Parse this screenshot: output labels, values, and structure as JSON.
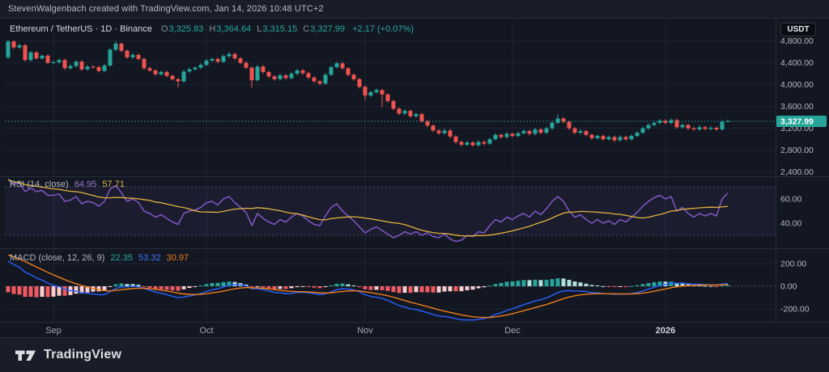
{
  "header": {
    "attribution": "StevenWalgenbach created with TradingView.com, Jan 14, 2026 10:48 UTC+2"
  },
  "toolbar": {
    "currency_button": "USDT"
  },
  "legend": {
    "symbol": "Ethereum / TetherUS · 1D · Binance",
    "ohlc": {
      "o_label": "O",
      "o": "3,325.83",
      "h_label": "H",
      "h": "3,364.64",
      "l_label": "L",
      "l": "3,315.15",
      "c_label": "C",
      "c": "3,327.99",
      "change": "+2.17 (+0.07%)"
    }
  },
  "rsi_legend": {
    "title": "RSI (14, close)",
    "value": "64.95",
    "ma_value": "57.71"
  },
  "macd_legend": {
    "title": "MACD (close, 12, 26, 9)",
    "hist": "22.35",
    "macd": "53.32",
    "signal": "30.97"
  },
  "footer": {
    "brand": "TradingView"
  },
  "colors": {
    "up": "#26a69a",
    "down": "#ef5350",
    "rsi_line": "#7e57c2",
    "rsi_ma": "#dfb23c",
    "rsi_band_fill": "rgba(126,87,194,0.09)",
    "macd_line": "#2962ff",
    "signal_line": "#f07d1a",
    "hist_up": "#26a69a",
    "hist_up_fade": "#b2dfdb",
    "hist_down": "#f25a60",
    "hist_down_fade": "#fbccd0",
    "grid": "#1d2333",
    "separator": "#262c3b",
    "axis_text": "#b3b7c0",
    "month_text": "#a2a6b1",
    "price_tag_bg": "#26a69a",
    "price_tag_text": "#ffffff",
    "price_line": "#26a69a"
  },
  "chart_data": {
    "type": "candlestick+indicators",
    "title": "Ethereum / TetherUS · 1D · Binance",
    "last_price": 3327.99,
    "price_tag": "3,327.99",
    "price_axis": {
      "range": [
        2351,
        5120
      ],
      "ticks": [
        {
          "v": 4800,
          "label": "4,800.00"
        },
        {
          "v": 4400,
          "label": "4,400.00"
        },
        {
          "v": 4000,
          "label": "4,000.00"
        },
        {
          "v": 3600,
          "label": "3,600.00"
        },
        {
          "v": 3200,
          "label": "3,200.00"
        },
        {
          "v": 2800,
          "label": "2,800.00"
        },
        {
          "v": 2400,
          "label": "2,400.00"
        }
      ]
    },
    "time_axis": {
      "months": [
        {
          "label": "Sep",
          "i": 8
        },
        {
          "label": "Oct",
          "i": 35
        },
        {
          "label": "Nov",
          "i": 63
        },
        {
          "label": "Dec",
          "i": 89
        },
        {
          "label": "2026",
          "i": 116,
          "year": true
        }
      ]
    },
    "candles": [
      [
        4500,
        4820,
        4470,
        4790
      ],
      [
        4790,
        4815,
        4650,
        4680
      ],
      [
        4680,
        4750,
        4655,
        4720
      ],
      [
        4720,
        4745,
        4420,
        4450
      ],
      [
        4450,
        4615,
        4425,
        4590
      ],
      [
        4590,
        4615,
        4455,
        4480
      ],
      [
        4480,
        4555,
        4455,
        4530
      ],
      [
        4530,
        4555,
        4375,
        4400
      ],
      [
        4400,
        4445,
        4370,
        4410
      ],
      [
        4410,
        4480,
        4385,
        4450
      ],
      [
        4450,
        4475,
        4270,
        4300
      ],
      [
        4300,
        4370,
        4275,
        4340
      ],
      [
        4340,
        4450,
        4315,
        4420
      ],
      [
        4420,
        4445,
        4250,
        4280
      ],
      [
        4280,
        4360,
        4255,
        4330
      ],
      [
        4330,
        4355,
        4290,
        4320
      ],
      [
        4320,
        4345,
        4220,
        4250
      ],
      [
        4250,
        4380,
        4225,
        4350
      ],
      [
        4350,
        4670,
        4330,
        4640
      ],
      [
        4640,
        4790,
        4615,
        4750
      ],
      [
        4750,
        4775,
        4590,
        4620
      ],
      [
        4620,
        4645,
        4470,
        4500
      ],
      [
        4500,
        4575,
        4475,
        4545
      ],
      [
        4545,
        4570,
        4440,
        4470
      ],
      [
        4470,
        4495,
        4270,
        4300
      ],
      [
        4300,
        4330,
        4230,
        4260
      ],
      [
        4260,
        4285,
        4160,
        4190
      ],
      [
        4190,
        4260,
        4165,
        4230
      ],
      [
        4230,
        4255,
        4130,
        4160
      ],
      [
        4160,
        4185,
        4070,
        4100
      ],
      [
        4100,
        4125,
        3950,
        4060
      ],
      [
        4060,
        4270,
        4035,
        4240
      ],
      [
        4240,
        4310,
        4215,
        4280
      ],
      [
        4280,
        4335,
        4255,
        4310
      ],
      [
        4310,
        4390,
        4285,
        4360
      ],
      [
        4360,
        4470,
        4335,
        4440
      ],
      [
        4440,
        4500,
        4415,
        4470
      ],
      [
        4470,
        4495,
        4390,
        4420
      ],
      [
        4420,
        4550,
        4395,
        4520
      ],
      [
        4520,
        4600,
        4495,
        4560
      ],
      [
        4560,
        4585,
        4450,
        4480
      ],
      [
        4480,
        4505,
        4370,
        4400
      ],
      [
        4400,
        4425,
        4280,
        4310
      ],
      [
        4310,
        4335,
        3945,
        4080
      ],
      [
        4080,
        4360,
        4055,
        4330
      ],
      [
        4330,
        4355,
        4200,
        4230
      ],
      [
        4230,
        4255,
        4120,
        4150
      ],
      [
        4150,
        4175,
        4070,
        4100
      ],
      [
        4100,
        4200,
        4075,
        4170
      ],
      [
        4170,
        4195,
        4090,
        4120
      ],
      [
        4120,
        4230,
        4095,
        4200
      ],
      [
        4200,
        4290,
        4175,
        4260
      ],
      [
        4260,
        4285,
        4180,
        4210
      ],
      [
        4210,
        4235,
        4100,
        4130
      ],
      [
        4130,
        4155,
        4030,
        4060
      ],
      [
        4060,
        4085,
        3985,
        4020
      ],
      [
        4020,
        4210,
        3995,
        4180
      ],
      [
        4180,
        4350,
        4155,
        4320
      ],
      [
        4320,
        4420,
        4295,
        4390
      ],
      [
        4390,
        4415,
        4270,
        4300
      ],
      [
        4300,
        4325,
        4150,
        4180
      ],
      [
        4180,
        4205,
        4070,
        4100
      ],
      [
        4100,
        4125,
        3930,
        3960
      ],
      [
        3960,
        3985,
        3705,
        3800
      ],
      [
        3800,
        3890,
        3775,
        3860
      ],
      [
        3860,
        3930,
        3835,
        3900
      ],
      [
        3900,
        3925,
        3585,
        3820
      ],
      [
        3820,
        3845,
        3670,
        3700
      ],
      [
        3700,
        3725,
        3530,
        3560
      ],
      [
        3560,
        3585,
        3440,
        3470
      ],
      [
        3470,
        3550,
        3445,
        3520
      ],
      [
        3520,
        3545,
        3390,
        3420
      ],
      [
        3420,
        3490,
        3395,
        3460
      ],
      [
        3460,
        3485,
        3300,
        3330
      ],
      [
        3330,
        3355,
        3220,
        3250
      ],
      [
        3250,
        3275,
        3130,
        3160
      ],
      [
        3160,
        3185,
        3080,
        3110
      ],
      [
        3110,
        3190,
        3085,
        3160
      ],
      [
        3160,
        3185,
        3020,
        3050
      ],
      [
        3050,
        3075,
        2920,
        2950
      ],
      [
        2950,
        2975,
        2866,
        2900
      ],
      [
        2900,
        2970,
        2875,
        2940
      ],
      [
        2940,
        2965,
        2860,
        2890
      ],
      [
        2890,
        2980,
        2865,
        2950
      ],
      [
        2950,
        2975,
        2890,
        2920
      ],
      [
        2920,
        3030,
        2895,
        3000
      ],
      [
        3000,
        3110,
        2975,
        3080
      ],
      [
        3080,
        3105,
        3010,
        3040
      ],
      [
        3040,
        3130,
        3015,
        3100
      ],
      [
        3100,
        3125,
        3030,
        3060
      ],
      [
        3060,
        3140,
        3035,
        3110
      ],
      [
        3110,
        3180,
        3085,
        3150
      ],
      [
        3150,
        3175,
        3070,
        3100
      ],
      [
        3100,
        3210,
        3075,
        3180
      ],
      [
        3180,
        3205,
        3090,
        3120
      ],
      [
        3120,
        3230,
        3095,
        3200
      ],
      [
        3200,
        3330,
        3175,
        3300
      ],
      [
        3300,
        3458,
        3275,
        3380
      ],
      [
        3380,
        3405,
        3290,
        3320
      ],
      [
        3320,
        3345,
        3170,
        3200
      ],
      [
        3200,
        3225,
        3090,
        3120
      ],
      [
        3120,
        3180,
        3095,
        3150
      ],
      [
        3150,
        3175,
        3050,
        3080
      ],
      [
        3080,
        3105,
        2990,
        3020
      ],
      [
        3020,
        3090,
        2995,
        3060
      ],
      [
        3060,
        3085,
        2970,
        3000
      ],
      [
        3000,
        3070,
        2975,
        3040
      ],
      [
        3040,
        3065,
        2950,
        2980
      ],
      [
        2980,
        3070,
        2955,
        3040
      ],
      [
        3040,
        3065,
        2970,
        3000
      ],
      [
        3000,
        3090,
        2975,
        3060
      ],
      [
        3060,
        3150,
        3035,
        3120
      ],
      [
        3120,
        3230,
        3095,
        3200
      ],
      [
        3200,
        3290,
        3175,
        3260
      ],
      [
        3260,
        3330,
        3235,
        3300
      ],
      [
        3300,
        3370,
        3275,
        3340
      ],
      [
        3340,
        3365,
        3270,
        3300
      ],
      [
        3300,
        3380,
        3275,
        3350
      ],
      [
        3350,
        3375,
        3190,
        3220
      ],
      [
        3220,
        3290,
        3195,
        3260
      ],
      [
        3260,
        3285,
        3170,
        3200
      ],
      [
        3200,
        3225,
        3150,
        3180
      ],
      [
        3180,
        3250,
        3155,
        3220
      ],
      [
        3220,
        3245,
        3160,
        3190
      ],
      [
        3190,
        3240,
        3165,
        3210
      ],
      [
        3210,
        3235,
        3150,
        3180
      ],
      [
        3180,
        3350,
        3155,
        3320
      ],
      [
        3325.83,
        3364.64,
        3315.15,
        3327.99
      ]
    ],
    "rsi": {
      "range": [
        20,
        78
      ],
      "levels": [
        70,
        30
      ],
      "axis_ticks": [
        {
          "v": 60,
          "label": "60.00"
        },
        {
          "v": 40,
          "label": "40.00"
        }
      ],
      "values": [
        76,
        72,
        73,
        66,
        69,
        66,
        67,
        63,
        63,
        64,
        58,
        59,
        62,
        56,
        58,
        57,
        54,
        58,
        68,
        71,
        65,
        58,
        60,
        57,
        50,
        48,
        45,
        47,
        44,
        41,
        39,
        48,
        50,
        51,
        53,
        57,
        58,
        55,
        60,
        62,
        57,
        53,
        49,
        38,
        48,
        44,
        41,
        39,
        43,
        41,
        45,
        48,
        46,
        42,
        39,
        38,
        46,
        53,
        56,
        50,
        46,
        42,
        37,
        32,
        35,
        37,
        34,
        31,
        28,
        30,
        33,
        31,
        33,
        30,
        32,
        29,
        28,
        31,
        27,
        25,
        26,
        30,
        29,
        33,
        32,
        38,
        43,
        41,
        45,
        43,
        46,
        48,
        45,
        50,
        47,
        52,
        58,
        62,
        58,
        50,
        45,
        47,
        43,
        40,
        43,
        40,
        42,
        39,
        43,
        41,
        45,
        49,
        54,
        58,
        61,
        63,
        60,
        62,
        50,
        53,
        48,
        45,
        48,
        46,
        48,
        46,
        60,
        64.95
      ],
      "ma_period": 14
    },
    "macd": {
      "params": [
        12,
        26,
        9
      ],
      "seed": {
        "macd": 250,
        "signal": 290
      },
      "axis_ticks": [
        {
          "v": 200,
          "label": "200.00"
        },
        {
          "v": 0,
          "label": "0.00"
        },
        {
          "v": -200,
          "label": "-200.00"
        }
      ],
      "range": [
        -300,
        321
      ]
    }
  }
}
